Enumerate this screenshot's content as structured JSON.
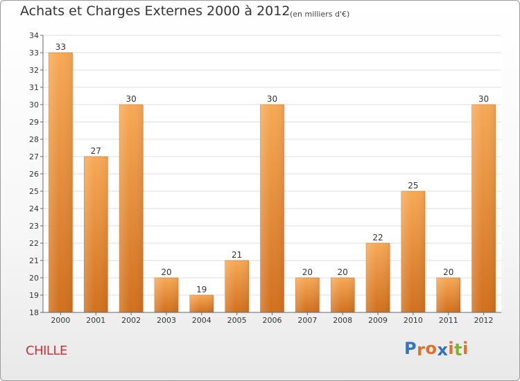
{
  "header": {
    "title": "Achats et Charges Externes 2000 à 2012",
    "subtitle": "(en milliers d'€)"
  },
  "footer": {
    "commune": "CHILLE",
    "logo_letters": [
      "P",
      "r",
      "o",
      "x",
      "i",
      "t",
      "i"
    ],
    "logo_colors": [
      "#2f74c8",
      "#e0702a",
      "#e0702a",
      "#2f74c8",
      "#e0702a",
      "#7cb32f",
      "#e0702a"
    ]
  },
  "colors": {
    "bar_light": "#f7a955",
    "bar_dark": "#d0701e",
    "grid": "#dddddd",
    "axis": "#666666"
  },
  "chart_data": {
    "type": "bar",
    "title": "Achats et Charges Externes 2000 à 2012",
    "subtitle": "(en milliers d'€)",
    "categories": [
      "2000",
      "2001",
      "2002",
      "2003",
      "2004",
      "2005",
      "2006",
      "2007",
      "2008",
      "2009",
      "2010",
      "2011",
      "2012"
    ],
    "values": [
      33,
      27,
      30,
      20,
      19,
      21,
      30,
      20,
      20,
      22,
      25,
      20,
      30
    ],
    "ylim": [
      18,
      34
    ],
    "yticks": [
      18,
      19,
      20,
      21,
      22,
      23,
      24,
      25,
      26,
      27,
      28,
      29,
      30,
      31,
      32,
      33,
      34
    ],
    "grid": true,
    "legend": "none",
    "data_labels": true,
    "xlabel": "",
    "ylabel": ""
  }
}
